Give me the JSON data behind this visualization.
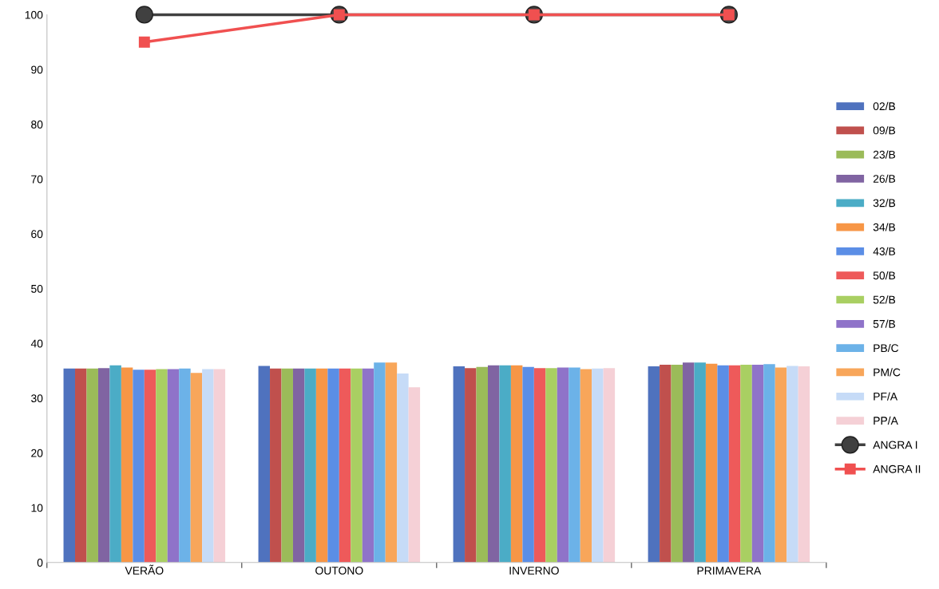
{
  "chart_data": {
    "type": "bar",
    "categories": [
      "VERÃO",
      "OUTONO",
      "INVERNO",
      "PRIMAVERA"
    ],
    "ylim": [
      0,
      100
    ],
    "yticks": [
      0,
      10,
      20,
      30,
      40,
      50,
      60,
      70,
      80,
      90,
      100
    ],
    "grid": false,
    "legend": "right",
    "series": [
      {
        "name": "02/B",
        "color": "#4f72be",
        "values": [
          35.4,
          35.9,
          35.8,
          35.8
        ]
      },
      {
        "name": "09/B",
        "color": "#c0504d",
        "values": [
          35.4,
          35.4,
          35.5,
          36.1
        ]
      },
      {
        "name": "23/B",
        "color": "#9bbb59",
        "values": [
          35.4,
          35.4,
          35.7,
          36.1
        ]
      },
      {
        "name": "26/B",
        "color": "#8064a2",
        "values": [
          35.5,
          35.4,
          36.0,
          36.5
        ]
      },
      {
        "name": "32/B",
        "color": "#4bacc6",
        "values": [
          36.0,
          35.4,
          36.0,
          36.5
        ]
      },
      {
        "name": "34/B",
        "color": "#f79646",
        "values": [
          35.6,
          35.4,
          36.0,
          36.3
        ]
      },
      {
        "name": "43/B",
        "color": "#5b8ee6",
        "values": [
          35.2,
          35.4,
          35.7,
          36.0
        ]
      },
      {
        "name": "50/B",
        "color": "#ee5a5a",
        "values": [
          35.2,
          35.4,
          35.5,
          36.0
        ]
      },
      {
        "name": "52/B",
        "color": "#a9cf62",
        "values": [
          35.3,
          35.4,
          35.5,
          36.1
        ]
      },
      {
        "name": "57/B",
        "color": "#8f73c9",
        "values": [
          35.3,
          35.4,
          35.6,
          36.1
        ]
      },
      {
        "name": "PB/C",
        "color": "#6cb2e8",
        "values": [
          35.4,
          36.5,
          35.6,
          36.2
        ]
      },
      {
        "name": "PM/C",
        "color": "#f8a65a",
        "values": [
          34.6,
          36.5,
          35.3,
          35.6
        ]
      },
      {
        "name": "PF/A",
        "color": "#c6dbf7",
        "values": [
          35.3,
          34.5,
          35.4,
          35.9
        ]
      },
      {
        "name": "PP/A",
        "color": "#f5d0d6",
        "values": [
          35.3,
          32.0,
          35.5,
          35.8
        ]
      },
      {
        "name": "ANGRA I",
        "type": "line",
        "color": "#404040",
        "marker": "circle",
        "values": [
          100,
          100,
          100,
          100
        ]
      },
      {
        "name": "ANGRA II",
        "type": "line",
        "color": "#f05050",
        "marker": "square",
        "values": [
          95,
          100,
          100,
          100
        ]
      }
    ]
  }
}
